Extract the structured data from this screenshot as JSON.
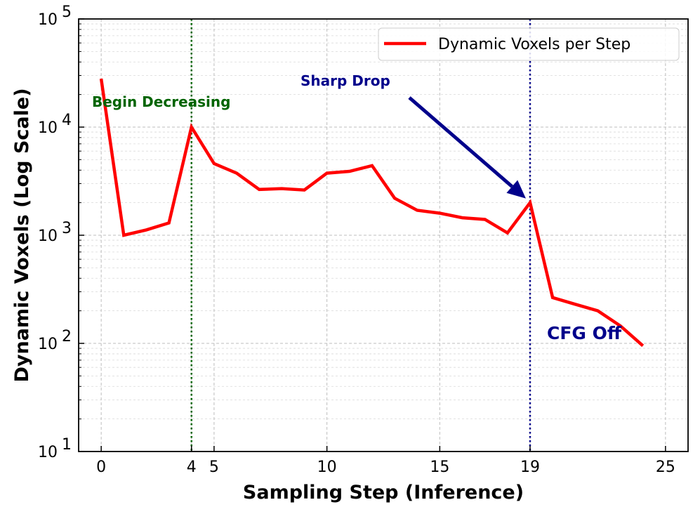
{
  "chart_data": {
    "type": "line",
    "xlabel": "Sampling Step (Inference)",
    "ylabel": "Dynamic Voxels (Log Scale)",
    "yscale": "log",
    "xlim": [
      -1,
      26
    ],
    "ylim": [
      10,
      100000
    ],
    "grid": true,
    "legend_position": "top-right",
    "x_ticks": [
      {
        "value": 0,
        "label": "0"
      },
      {
        "value": 4,
        "label": "4"
      },
      {
        "value": 5,
        "label": "5"
      },
      {
        "value": 10,
        "label": "10"
      },
      {
        "value": 15,
        "label": "15"
      },
      {
        "value": 19,
        "label": "19"
      },
      {
        "value": 25,
        "label": "25"
      }
    ],
    "y_ticks": [
      {
        "value": 10,
        "base": "10",
        "exp": "1"
      },
      {
        "value": 100,
        "base": "10",
        "exp": "2"
      },
      {
        "value": 1000,
        "base": "10",
        "exp": "3"
      },
      {
        "value": 10000,
        "base": "10",
        "exp": "4"
      },
      {
        "value": 100000,
        "base": "10",
        "exp": "5"
      }
    ],
    "series": [
      {
        "name": "Dynamic Voxels per Step",
        "color": "#ff0000",
        "x": [
          0,
          1,
          2,
          3,
          4,
          5,
          6,
          7,
          8,
          9,
          10,
          11,
          12,
          13,
          14,
          15,
          16,
          17,
          18,
          19,
          20,
          21,
          22,
          23,
          24
        ],
        "values": [
          28000,
          1000,
          1120,
          1300,
          10000,
          4600,
          3750,
          2650,
          2700,
          2620,
          3750,
          3900,
          4400,
          2200,
          1700,
          1600,
          1450,
          1400,
          1050,
          2000,
          265,
          230,
          200,
          145,
          95
        ]
      }
    ],
    "vlines": [
      {
        "x": 4,
        "color": "#006400",
        "style": "dotted"
      },
      {
        "x": 19,
        "color": "#00008b",
        "style": "dotted"
      }
    ],
    "annotations": [
      {
        "text": "Begin Decreasing",
        "color": "#006400"
      },
      {
        "text": "Sharp Drop",
        "color": "#00008b"
      },
      {
        "text": "CFG Off",
        "color": "#00008b"
      }
    ]
  }
}
